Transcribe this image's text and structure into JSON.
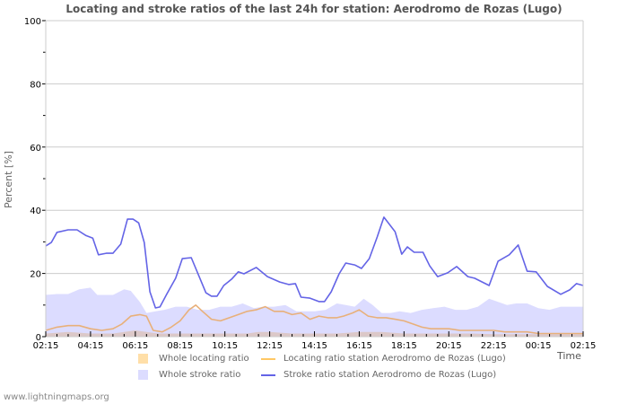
{
  "header": {
    "title": "Locating and stroke ratios of the last 24h for station: Aerodromo de Rozas (Lugo)"
  },
  "axes": {
    "ylabel": "Percent   [%]",
    "xlabel": "Time",
    "yticks": [
      "0",
      "20",
      "40",
      "60",
      "80",
      "100"
    ],
    "xticks": [
      "02:15",
      "04:15",
      "06:15",
      "08:15",
      "10:15",
      "12:15",
      "14:15",
      "16:15",
      "18:15",
      "20:15",
      "22:15",
      "00:15",
      "02:15"
    ]
  },
  "legend": {
    "whole_locating": "Whole locating ratio",
    "whole_stroke": "Whole stroke ratio",
    "station_locating": "Locating ratio station Aerodromo de Rozas (Lugo)",
    "station_stroke": "Stroke ratio station Aerodromo de Rozas (Lugo)"
  },
  "footer": {
    "source": "www.lightningmaps.org"
  },
  "colors": {
    "whole_locating": "#ffdfa8",
    "whole_stroke": "#dcdcff",
    "station_locating": "#e8b07a",
    "station_stroke": "#6464e6",
    "overlap": "#dcc8c8",
    "grid": "#cccccc"
  },
  "chart_data": {
    "type": "line",
    "title": "Locating and stroke ratios of the last 24h for station: Aerodromo de Rozas (Lugo)",
    "xlabel": "Time",
    "ylabel": "Percent [%]",
    "ylim": [
      0,
      100
    ],
    "xrange_hours": [
      0,
      24
    ],
    "x_start_label": "02:15",
    "grid": true,
    "legend_position": "bottom",
    "categories": [
      "02:15",
      "04:15",
      "06:15",
      "08:15",
      "10:15",
      "12:15",
      "14:15",
      "16:15",
      "18:15",
      "20:15",
      "22:15",
      "00:15",
      "02:15"
    ],
    "series": [
      {
        "name": "Stroke ratio station Aerodromo de Rozas (Lugo)",
        "kind": "line",
        "x_hours": [
          0,
          0.25,
          0.5,
          1.0,
          1.4,
          1.8,
          2.1,
          2.35,
          2.7,
          3.0,
          3.35,
          3.65,
          3.9,
          4.15,
          4.4,
          4.65,
          4.9,
          5.1,
          5.4,
          5.8,
          6.1,
          6.5,
          6.85,
          7.15,
          7.4,
          7.65,
          7.95,
          8.3,
          8.6,
          8.85,
          9.4,
          9.9,
          10.45,
          10.85,
          11.15,
          11.4,
          11.8,
          12.2,
          12.45,
          12.75,
          13.1,
          13.4,
          13.8,
          14.1,
          14.45,
          14.8,
          15.1,
          15.6,
          15.9,
          16.15,
          16.45,
          16.85,
          17.15,
          17.5,
          17.95,
          18.35,
          18.85,
          19.15,
          19.8,
          20.2,
          20.7,
          21.1,
          21.5,
          21.9,
          22.4,
          23.0,
          23.4,
          23.7,
          24.0
        ],
        "values": [
          28.7,
          29.8,
          33.0,
          33.8,
          33.8,
          32.0,
          31.2,
          25.9,
          26.4,
          26.4,
          29.3,
          37.2,
          37.2,
          36.0,
          29.8,
          14.2,
          9.1,
          9.4,
          13.4,
          18.5,
          24.7,
          25.0,
          19.0,
          13.9,
          12.8,
          12.8,
          16.2,
          18.2,
          20.5,
          19.9,
          21.9,
          19.0,
          17.3,
          16.5,
          16.8,
          12.5,
          12.2,
          11.1,
          11.1,
          14.2,
          19.9,
          23.3,
          22.7,
          21.6,
          24.7,
          31.5,
          37.8,
          33.2,
          26.1,
          28.4,
          26.7,
          26.7,
          22.4,
          19.0,
          20.2,
          22.2,
          19.0,
          18.5,
          16.2,
          23.9,
          25.9,
          29.0,
          20.7,
          20.5,
          15.9,
          13.4,
          14.8,
          16.8,
          16.2
        ]
      },
      {
        "name": "Whole stroke ratio",
        "kind": "area",
        "x_hours": [
          0,
          0.5,
          1.0,
          1.5,
          2.0,
          2.3,
          2.7,
          3.0,
          3.5,
          3.8,
          4.2,
          4.5,
          4.9,
          5.3,
          5.8,
          6.3,
          6.8,
          7.3,
          7.8,
          8.3,
          8.8,
          9.3,
          9.7,
          10.2,
          10.7,
          11.2,
          11.6,
          12.0,
          12.5,
          13.0,
          13.4,
          13.8,
          14.2,
          14.6,
          15.0,
          15.4,
          15.8,
          16.3,
          16.8,
          17.3,
          17.8,
          18.3,
          18.8,
          19.3,
          19.8,
          20.2,
          20.6,
          21.0,
          21.5,
          22.0,
          22.5,
          23.0,
          23.5,
          24.0
        ],
        "values": [
          13.2,
          13.5,
          13.5,
          15.0,
          15.5,
          13.2,
          13.2,
          13.2,
          15.0,
          14.5,
          11.0,
          7.5,
          8.0,
          8.5,
          9.5,
          9.5,
          8.5,
          8.5,
          9.5,
          9.5,
          10.5,
          9.0,
          9.5,
          9.5,
          10.0,
          8.0,
          8.0,
          8.0,
          8.5,
          10.5,
          10.0,
          9.5,
          12.0,
          10.0,
          7.5,
          7.5,
          8.0,
          7.5,
          8.5,
          9.0,
          9.5,
          8.5,
          8.5,
          9.5,
          12.0,
          11.0,
          10.0,
          10.5,
          10.5,
          9.0,
          8.5,
          9.5,
          9.5,
          9.5
        ]
      },
      {
        "name": "Locating ratio station Aerodromo de Rozas (Lugo)",
        "kind": "line",
        "x_hours": [
          0,
          0.5,
          1.0,
          1.5,
          2.0,
          2.5,
          3.0,
          3.4,
          3.8,
          4.2,
          4.5,
          4.8,
          5.2,
          5.6,
          6.0,
          6.4,
          6.7,
          7.0,
          7.4,
          7.8,
          8.2,
          8.6,
          9.0,
          9.4,
          9.8,
          10.2,
          10.6,
          11.0,
          11.4,
          11.8,
          12.2,
          12.6,
          13.0,
          13.3,
          13.7,
          14.0,
          14.4,
          14.8,
          15.2,
          15.6,
          16.0,
          16.4,
          16.8,
          17.2,
          17.6,
          18.0,
          18.5,
          19.0,
          19.5,
          20.0,
          20.5,
          21.0,
          21.5,
          22.0,
          22.5,
          23.0,
          23.5,
          24.0
        ],
        "values": [
          2.0,
          3.0,
          3.5,
          3.5,
          2.5,
          2.0,
          2.5,
          4.0,
          6.5,
          7.0,
          6.5,
          2.0,
          1.5,
          3.0,
          5.0,
          8.5,
          10.0,
          8.0,
          5.5,
          5.0,
          6.0,
          7.0,
          8.0,
          8.5,
          9.5,
          8.0,
          8.0,
          7.0,
          7.5,
          5.5,
          6.5,
          6.0,
          6.0,
          6.5,
          7.5,
          8.5,
          6.5,
          6.0,
          6.0,
          5.5,
          5.0,
          4.0,
          3.0,
          2.5,
          2.5,
          2.5,
          2.0,
          2.0,
          2.0,
          2.0,
          1.5,
          1.5,
          1.5,
          1.0,
          1.0,
          1.0,
          1.0,
          1.0
        ]
      },
      {
        "name": "Whole locating ratio",
        "kind": "area",
        "x_hours": [
          0,
          1.0,
          2.0,
          3.0,
          3.5,
          4.0,
          4.5,
          5.0,
          6.0,
          7.0,
          8.0,
          9.0,
          9.5,
          10.0,
          11.0,
          12.0,
          13.0,
          14.0,
          15.0,
          16.0,
          17.0,
          18.0,
          19.0,
          20.0,
          21.0,
          22.0,
          23.0,
          24.0
        ],
        "values": [
          1.0,
          1.5,
          1.0,
          1.0,
          1.5,
          2.0,
          1.5,
          1.0,
          1.0,
          1.0,
          1.0,
          1.0,
          1.5,
          1.5,
          1.0,
          1.0,
          1.0,
          1.5,
          1.5,
          1.0,
          1.0,
          1.0,
          1.0,
          0.8,
          0.8,
          0.8,
          0.8,
          0.8
        ]
      }
    ]
  }
}
